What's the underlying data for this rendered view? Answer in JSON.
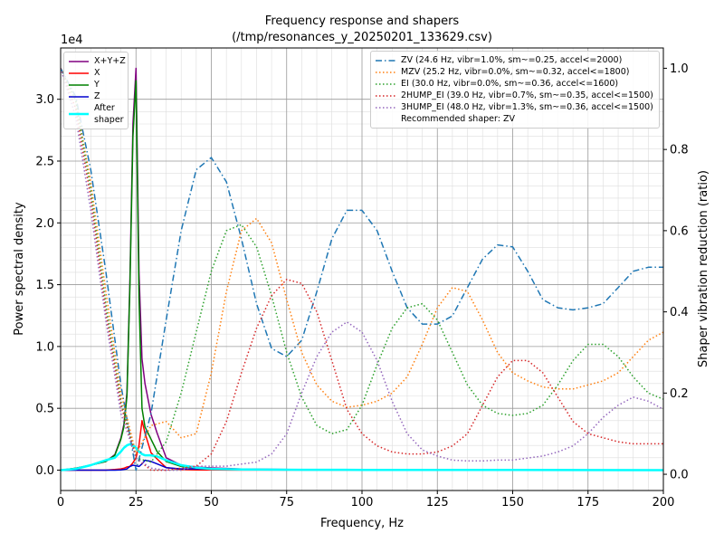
{
  "chart_data": {
    "type": "line",
    "title": "Frequency response and shapers",
    "subtitle": "(/tmp/resonances_y_20250201_133629.csv)",
    "x_label": "Frequency, Hz",
    "y_label": "Power spectral density",
    "y2_label": "Shaper vibration reduction (ratio)",
    "y_offset_label": "1e4",
    "annotation": "Recommended shaper: ZV",
    "xlim": [
      0,
      200
    ],
    "xticks": [
      0,
      25,
      50,
      75,
      100,
      125,
      150,
      175,
      200
    ],
    "ylim": [
      -1650,
      34150
    ],
    "yticks": [
      {
        "value": 0,
        "label": "0.0"
      },
      {
        "value": 5000,
        "label": "0.5"
      },
      {
        "value": 10000,
        "label": "1.0"
      },
      {
        "value": 15000,
        "label": "1.5"
      },
      {
        "value": 20000,
        "label": "2.0"
      },
      {
        "value": 25000,
        "label": "2.5"
      },
      {
        "value": 30000,
        "label": "3.0"
      }
    ],
    "y2lim": [
      -0.04,
      1.05
    ],
    "y2ticks": [
      {
        "value": 0,
        "label": "0.0"
      },
      0.2,
      0.4,
      0.6,
      0.8,
      {
        "value": 1,
        "label": "1.0"
      }
    ],
    "grid": true,
    "minor_grid": true,
    "legend": "upper left",
    "legend2": "upper right",
    "series": [
      {
        "name": "X+Y+Z",
        "color": "#800080",
        "width": 1.5,
        "x": [
          0,
          5,
          10,
          15,
          18,
          20,
          21,
          22,
          23,
          24,
          25,
          26,
          27,
          28,
          30,
          32,
          35,
          40,
          45,
          50,
          60,
          80,
          100,
          150,
          200
        ],
        "values": [
          0,
          150,
          400,
          700,
          1250,
          2600,
          3700,
          6300,
          15500,
          28000,
          32500,
          16000,
          9000,
          7000,
          4500,
          3000,
          1000,
          400,
          250,
          180,
          90,
          40,
          20,
          10,
          0
        ]
      },
      {
        "name": "X",
        "color": "#ff0000",
        "width": 1.5,
        "x": [
          0,
          5,
          10,
          15,
          18,
          20,
          21,
          22,
          23,
          24,
          25,
          26,
          27,
          28,
          30,
          32,
          35,
          40,
          45,
          50,
          60,
          80,
          100,
          150,
          200
        ],
        "values": [
          0,
          0,
          0,
          0,
          50,
          100,
          150,
          250,
          300,
          600,
          1000,
          2000,
          4000,
          3000,
          1400,
          900,
          200,
          50,
          20,
          10,
          5,
          5,
          5,
          0,
          0
        ]
      },
      {
        "name": "Y",
        "color": "#008000",
        "width": 1.5,
        "x": [
          0,
          5,
          10,
          15,
          18,
          20,
          21,
          22,
          23,
          24,
          25,
          26,
          27,
          28,
          30,
          32,
          35,
          40,
          45,
          50,
          60,
          80,
          100,
          150,
          200
        ],
        "values": [
          0,
          150,
          400,
          700,
          1200,
          2500,
          3500,
          6000,
          15000,
          27000,
          31500,
          14000,
          5000,
          3500,
          2500,
          1500,
          700,
          300,
          150,
          80,
          40,
          20,
          10,
          5,
          0
        ]
      },
      {
        "name": "Z",
        "color": "#0000cd",
        "width": 1.5,
        "x": [
          0,
          5,
          10,
          15,
          18,
          20,
          21,
          22,
          23,
          24,
          25,
          26,
          27,
          28,
          30,
          32,
          35,
          40,
          45,
          50,
          60,
          80,
          100,
          150,
          200
        ],
        "values": [
          0,
          0,
          0,
          0,
          0,
          20,
          50,
          100,
          300,
          400,
          350,
          300,
          500,
          800,
          700,
          500,
          200,
          100,
          100,
          100,
          50,
          20,
          20,
          10,
          0
        ]
      },
      {
        "name": "After shaper",
        "color": "#00ffff",
        "width": 2.5,
        "x": [
          0,
          5,
          10,
          15,
          18,
          20,
          21,
          22,
          23,
          24,
          25,
          26,
          27,
          28,
          30,
          32,
          35,
          40,
          45,
          50,
          60,
          80,
          100,
          150,
          200
        ],
        "values": [
          0,
          100,
          400,
          800,
          1000,
          1500,
          1800,
          2000,
          2100,
          2000,
          1800,
          1500,
          1300,
          1200,
          1200,
          1100,
          800,
          400,
          200,
          100,
          50,
          30,
          20,
          10,
          0
        ]
      },
      {
        "name": "ZV (24.6 Hz, vibr=1.0%, sm~=0.25, accel<=2000)",
        "color": "#1f77b4",
        "axis": "y2",
        "dash": "dashdot",
        "x": [
          0,
          5,
          10,
          15,
          20,
          25,
          30,
          35,
          40,
          45,
          50,
          55,
          60,
          65,
          70,
          75,
          80,
          85,
          90,
          95,
          100,
          105,
          110,
          115,
          120,
          125,
          130,
          135,
          140,
          145,
          150,
          155,
          160,
          165,
          170,
          175,
          180,
          185,
          190,
          195,
          200
        ],
        "values": [
          1.0,
          0.93,
          0.75,
          0.5,
          0.22,
          0.01,
          0.15,
          0.38,
          0.6,
          0.75,
          0.78,
          0.72,
          0.58,
          0.42,
          0.31,
          0.29,
          0.33,
          0.45,
          0.58,
          0.65,
          0.65,
          0.6,
          0.5,
          0.41,
          0.37,
          0.37,
          0.39,
          0.46,
          0.53,
          0.565,
          0.56,
          0.5,
          0.43,
          0.41,
          0.405,
          0.41,
          0.42,
          0.46,
          0.5,
          0.51,
          0.51
        ]
      },
      {
        "name": "MZV (25.2 Hz, vibr=0.0%, sm~=0.32, accel<=1800)",
        "color": "#ff7f0e",
        "axis": "y2",
        "dash": "dotted",
        "x": [
          0,
          5,
          10,
          15,
          20,
          25,
          30,
          35,
          40,
          45,
          50,
          55,
          60,
          65,
          70,
          75,
          80,
          85,
          90,
          95,
          100,
          105,
          110,
          115,
          120,
          125,
          130,
          135,
          140,
          145,
          150,
          155,
          160,
          165,
          170,
          175,
          180,
          185,
          190,
          195,
          200
        ],
        "values": [
          1.0,
          0.92,
          0.72,
          0.45,
          0.2,
          0.05,
          0.12,
          0.13,
          0.09,
          0.1,
          0.25,
          0.45,
          0.6,
          0.63,
          0.57,
          0.43,
          0.3,
          0.22,
          0.18,
          0.165,
          0.17,
          0.18,
          0.2,
          0.24,
          0.32,
          0.41,
          0.46,
          0.45,
          0.38,
          0.3,
          0.25,
          0.23,
          0.215,
          0.21,
          0.21,
          0.22,
          0.23,
          0.25,
          0.29,
          0.33,
          0.35
        ]
      },
      {
        "name": "EI (30.0 Hz, vibr=0.0%, sm~=0.36, accel<=1600)",
        "color": "#2ca02c",
        "axis": "y2",
        "dash": "dotted",
        "x": [
          0,
          5,
          10,
          15,
          20,
          25,
          30,
          35,
          40,
          45,
          50,
          55,
          60,
          65,
          70,
          75,
          80,
          85,
          90,
          95,
          100,
          105,
          110,
          115,
          120,
          125,
          130,
          135,
          140,
          145,
          150,
          155,
          160,
          165,
          170,
          175,
          180,
          185,
          190,
          195,
          200
        ],
        "values": [
          1.0,
          0.92,
          0.7,
          0.42,
          0.18,
          0.04,
          0.03,
          0.08,
          0.2,
          0.35,
          0.5,
          0.6,
          0.615,
          0.56,
          0.44,
          0.3,
          0.19,
          0.12,
          0.1,
          0.11,
          0.17,
          0.27,
          0.36,
          0.41,
          0.42,
          0.38,
          0.3,
          0.22,
          0.17,
          0.15,
          0.145,
          0.15,
          0.17,
          0.22,
          0.28,
          0.32,
          0.32,
          0.29,
          0.24,
          0.2,
          0.185
        ]
      },
      {
        "name": "2HUMP_EI (39.0 Hz, vibr=0.7%, sm~=0.35, accel<=1500)",
        "color": "#d62728",
        "axis": "y2",
        "dash": "dotted",
        "x": [
          0,
          5,
          10,
          15,
          20,
          25,
          30,
          35,
          40,
          45,
          50,
          55,
          60,
          65,
          70,
          75,
          80,
          85,
          90,
          95,
          100,
          105,
          110,
          115,
          120,
          125,
          130,
          135,
          140,
          145,
          150,
          155,
          160,
          165,
          170,
          175,
          180,
          185,
          190,
          195,
          200
        ],
        "values": [
          1.0,
          0.9,
          0.68,
          0.4,
          0.17,
          0.04,
          0.01,
          0.01,
          0.015,
          0.02,
          0.05,
          0.13,
          0.25,
          0.36,
          0.44,
          0.48,
          0.47,
          0.4,
          0.28,
          0.16,
          0.1,
          0.07,
          0.055,
          0.05,
          0.05,
          0.055,
          0.07,
          0.1,
          0.17,
          0.24,
          0.28,
          0.28,
          0.25,
          0.19,
          0.13,
          0.1,
          0.09,
          0.08,
          0.075,
          0.075,
          0.075
        ]
      },
      {
        "name": "3HUMP_EI (48.0 Hz, vibr=1.3%, sm~=0.36, accel<=1500)",
        "color": "#9467bd",
        "axis": "y2",
        "dash": "dotted",
        "x": [
          0,
          5,
          10,
          15,
          20,
          25,
          30,
          35,
          40,
          45,
          50,
          55,
          60,
          65,
          70,
          75,
          80,
          85,
          90,
          95,
          100,
          105,
          110,
          115,
          120,
          125,
          130,
          135,
          140,
          145,
          150,
          155,
          160,
          165,
          170,
          175,
          180,
          185,
          190,
          195,
          200
        ],
        "values": [
          1.0,
          0.88,
          0.65,
          0.38,
          0.15,
          0.04,
          0.015,
          0.01,
          0.01,
          0.02,
          0.02,
          0.02,
          0.025,
          0.03,
          0.05,
          0.1,
          0.2,
          0.29,
          0.35,
          0.375,
          0.35,
          0.28,
          0.18,
          0.1,
          0.06,
          0.045,
          0.035,
          0.033,
          0.033,
          0.035,
          0.035,
          0.04,
          0.045,
          0.055,
          0.07,
          0.1,
          0.14,
          0.17,
          0.19,
          0.18,
          0.16
        ]
      }
    ]
  }
}
